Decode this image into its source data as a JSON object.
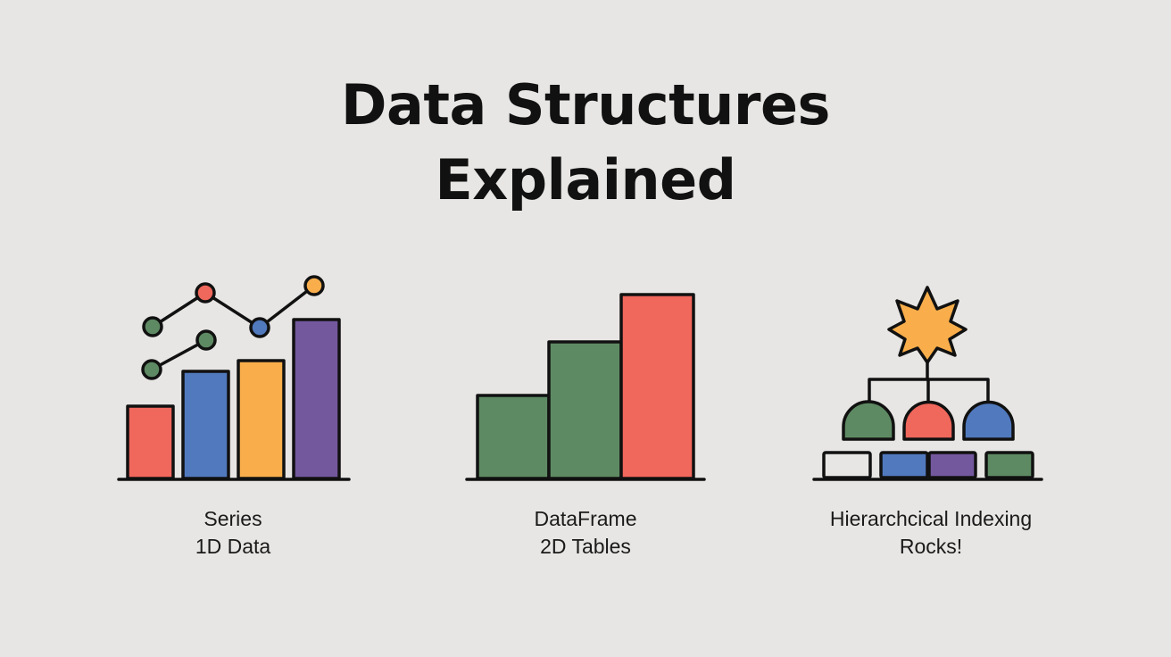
{
  "title": {
    "line1": "Data Structures",
    "line2": "Explained"
  },
  "panels": [
    {
      "caption_line1": "Series",
      "caption_line2": "1D Data"
    },
    {
      "caption_line1": "DataFrame",
      "caption_line2": "2D Tables"
    },
    {
      "caption_line1": "Hierarchcical Indexing",
      "caption_line2": "Rocks!"
    }
  ],
  "colors": {
    "background": "#e8e6e4",
    "stroke": "#111111",
    "red": "#f0675c",
    "blue": "#5179bd",
    "orange": "#f9ae4b",
    "purple": "#74589e",
    "green": "#5e8a63"
  }
}
